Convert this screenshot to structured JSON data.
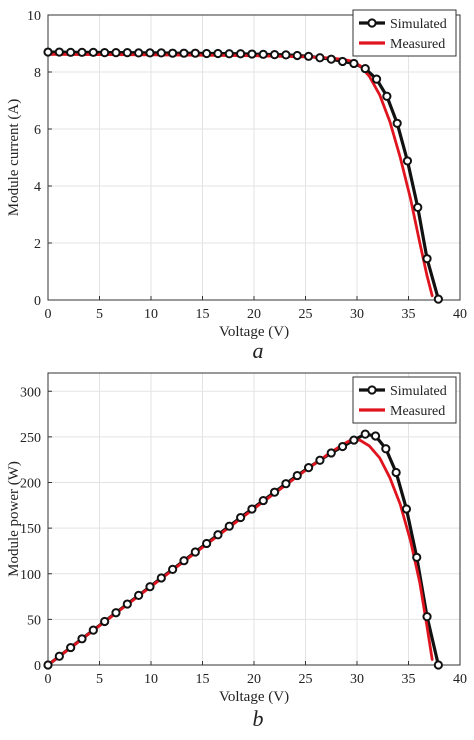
{
  "chart_data": [
    {
      "type": "line",
      "panel_label": "a",
      "xlabel": "Voltage (V)",
      "ylabel": "Module current (A)",
      "xlim": [
        0,
        40
      ],
      "ylim": [
        0,
        10
      ],
      "xticks": [
        0,
        5,
        10,
        15,
        20,
        25,
        30,
        35,
        40
      ],
      "yticks": [
        0,
        2,
        4,
        6,
        8,
        10
      ],
      "grid": true,
      "legend_position": "top-right",
      "series": [
        {
          "name": "Simulated",
          "color": "#111111",
          "marker": "circle",
          "x": [
            0,
            1.1,
            2.2,
            3.3,
            4.4,
            5.5,
            6.6,
            7.7,
            8.8,
            9.9,
            11.0,
            12.1,
            13.2,
            14.3,
            15.4,
            16.5,
            17.6,
            18.7,
            19.8,
            20.9,
            22.0,
            23.1,
            24.2,
            25.3,
            26.4,
            27.5,
            28.6,
            29.7,
            30.8,
            31.9,
            32.9,
            33.9,
            34.9,
            35.9,
            36.8,
            37.9
          ],
          "y": [
            8.7,
            8.7,
            8.69,
            8.69,
            8.69,
            8.68,
            8.68,
            8.68,
            8.67,
            8.67,
            8.67,
            8.66,
            8.66,
            8.66,
            8.65,
            8.65,
            8.64,
            8.64,
            8.63,
            8.62,
            8.61,
            8.6,
            8.58,
            8.55,
            8.5,
            8.45,
            8.37,
            8.3,
            8.12,
            7.75,
            7.15,
            6.2,
            4.88,
            3.25,
            1.45,
            0.03
          ]
        },
        {
          "name": "Measured",
          "color": "#e0141e",
          "x": [
            0,
            5,
            10,
            15,
            20,
            25,
            27,
            28.5,
            29.5,
            30.3,
            31.2,
            32.2,
            33.2,
            34.2,
            35.2,
            36.1,
            36.8,
            37.3
          ],
          "y": [
            8.62,
            8.61,
            8.6,
            8.59,
            8.57,
            8.53,
            8.5,
            8.45,
            8.38,
            8.22,
            7.85,
            7.2,
            6.25,
            5.0,
            3.55,
            2.0,
            0.85,
            0.15
          ]
        }
      ]
    },
    {
      "type": "line",
      "panel_label": "b",
      "xlabel": "Voltage (V)",
      "ylabel": "Module power (W)",
      "xlim": [
        0,
        40
      ],
      "ylim": [
        0,
        320
      ],
      "xticks": [
        0,
        5,
        10,
        15,
        20,
        25,
        30,
        35,
        40
      ],
      "yticks": [
        0,
        50,
        100,
        150,
        200,
        250,
        300
      ],
      "grid": true,
      "legend_position": "top-right",
      "series": [
        {
          "name": "Simulated",
          "color": "#111111",
          "marker": "circle",
          "x": [
            0,
            1.1,
            2.2,
            3.3,
            4.4,
            5.5,
            6.6,
            7.7,
            8.8,
            9.9,
            11.0,
            12.1,
            13.2,
            14.3,
            15.4,
            16.5,
            17.6,
            18.7,
            19.8,
            20.9,
            22.0,
            23.1,
            24.2,
            25.3,
            26.4,
            27.5,
            28.6,
            29.7,
            30.8,
            31.8,
            32.8,
            33.8,
            34.8,
            35.8,
            36.8,
            37.9
          ],
          "y": [
            0,
            9.6,
            19.1,
            28.7,
            38.2,
            47.7,
            57.3,
            66.8,
            76.3,
            85.8,
            95.4,
            104.8,
            114.3,
            123.8,
            133.2,
            142.7,
            152.1,
            161.6,
            170.9,
            180.2,
            189.4,
            198.7,
            207.6,
            216.3,
            224.4,
            232.4,
            239.4,
            246.5,
            253,
            251,
            237,
            211,
            171,
            118,
            53,
            0
          ]
        },
        {
          "name": "Measured",
          "color": "#e0141e",
          "x": [
            0,
            5,
            10,
            15,
            20,
            25,
            27,
            28.5,
            29.5,
            30.3,
            31.2,
            32.2,
            33.2,
            34.2,
            35.2,
            36.1,
            36.8,
            37.3
          ],
          "y": [
            0,
            43,
            86,
            128.9,
            171.4,
            213.3,
            229.5,
            240.8,
            247.2,
            246.3,
            240.1,
            227,
            205,
            176,
            136,
            90,
            42,
            6
          ]
        }
      ]
    }
  ]
}
